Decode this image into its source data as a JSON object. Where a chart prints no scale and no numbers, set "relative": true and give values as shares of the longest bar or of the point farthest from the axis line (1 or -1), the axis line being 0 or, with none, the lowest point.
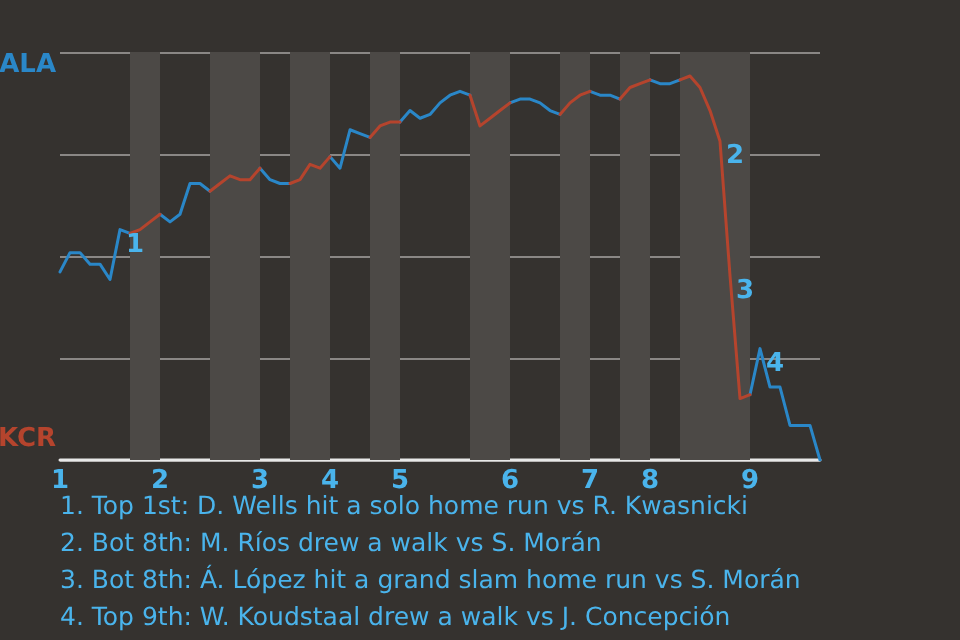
{
  "chart_data": {
    "type": "line",
    "relative": true,
    "categories": [
      "1",
      null,
      null,
      null,
      null,
      null,
      null,
      null,
      null,
      null,
      "2",
      null,
      null,
      null,
      null,
      null,
      null,
      null,
      null,
      null,
      "3",
      null,
      null,
      null,
      null,
      null,
      null,
      "4",
      null,
      null,
      null,
      null,
      null,
      null,
      "5",
      null,
      null,
      null,
      null,
      null,
      null,
      null,
      null,
      null,
      null,
      "6",
      null,
      null,
      null,
      null,
      null,
      null,
      null,
      "7",
      null,
      null,
      null,
      null,
      null,
      "8",
      null,
      null,
      null,
      null,
      null,
      null,
      null,
      null,
      null,
      "9",
      null,
      null,
      null,
      null,
      null,
      null,
      null
    ],
    "series": [
      {
        "color": "#2a87c8",
        "values": [
          0.49,
          0.54,
          0.54,
          0.51,
          0.51,
          0.47,
          0.6,
          0.59,
          null,
          null,
          0.64,
          0.62,
          0.64,
          0.72,
          0.72,
          0.7,
          null,
          null,
          null,
          null,
          0.76,
          0.73,
          0.72,
          0.72,
          null,
          null,
          null,
          0.79,
          0.76,
          0.86,
          0.85,
          0.84,
          null,
          null,
          0.88,
          0.91,
          0.89,
          0.9,
          0.93,
          0.95,
          0.96,
          0.95,
          null,
          null,
          null,
          0.93,
          0.94,
          0.94,
          0.93,
          0.91,
          0.9,
          null,
          null,
          0.96,
          0.95,
          0.95,
          0.94,
          null,
          null,
          0.99,
          0.98,
          0.98,
          0.99,
          null,
          null,
          null,
          null,
          null,
          null,
          0.17,
          0.29,
          0.19,
          0.19,
          0.09,
          0.09,
          0.09,
          0
        ]
      },
      {
        "color": "#b5442d",
        "values": [
          null,
          null,
          null,
          null,
          null,
          null,
          null,
          0.59,
          0.6,
          0.62,
          0.64,
          null,
          null,
          null,
          null,
          0.7,
          0.72,
          0.74,
          0.73,
          0.73,
          0.76,
          null,
          null,
          0.72,
          0.73,
          0.77,
          0.76,
          0.79,
          null,
          null,
          null,
          0.84,
          0.87,
          0.88,
          0.88,
          null,
          null,
          null,
          null,
          null,
          null,
          0.95,
          0.87,
          0.89,
          0.91,
          0.93,
          null,
          null,
          null,
          null,
          0.9,
          0.93,
          0.95,
          0.96,
          null,
          null,
          0.94,
          0.97,
          0.98,
          0.99,
          null,
          null,
          0.99,
          1,
          0.97,
          0.91,
          0.83,
          0.48,
          0.16,
          0.17,
          null,
          null,
          null,
          null,
          null,
          null,
          null
        ]
      }
    ],
    "grid": "y",
    "marker": "none",
    "annotations": [
      "1",
      "2",
      "3",
      "4",
      "ALA",
      "KCR",
      "1. Top 1st: D. Wells hit a solo home run vs R. Kwasnicki",
      "2. Bot 8th: M. Ríos drew a walk vs S. Morán",
      "3. Bot 8th: Á. López hit a grand slam home run vs S. Morán",
      "4. Top 9th: W. Koudstaal drew a walk vs J. Concepción"
    ]
  }
}
